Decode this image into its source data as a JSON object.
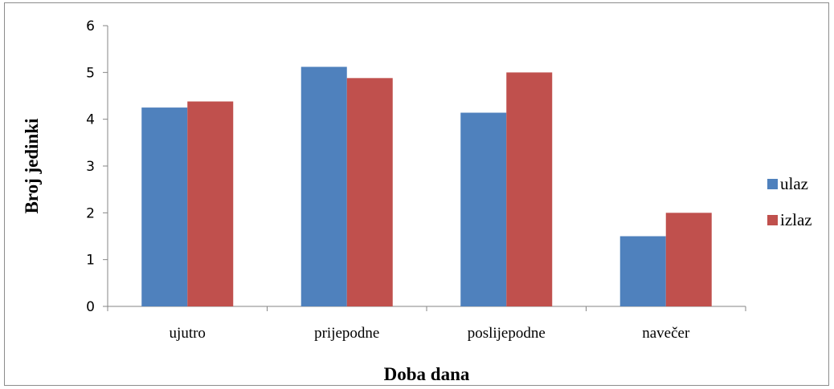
{
  "chart_data": {
    "type": "bar",
    "title": "",
    "xlabel": "Doba dana",
    "ylabel": "Broj jedinki",
    "categories": [
      "ujutro",
      "prijepodne",
      "poslijepodne",
      "navečer"
    ],
    "series": [
      {
        "name": "ulaz",
        "color": "#4F81BD",
        "values": [
          4.25,
          5.12,
          4.14,
          1.5
        ]
      },
      {
        "name": "izlaz",
        "color": "#C0504D",
        "values": [
          4.38,
          4.88,
          5.0,
          2.0
        ]
      }
    ],
    "ylim": [
      0,
      6
    ],
    "yticks": [
      "0",
      "1",
      "2",
      "3",
      "4",
      "5",
      "6"
    ],
    "grid": false,
    "legend": "right"
  }
}
